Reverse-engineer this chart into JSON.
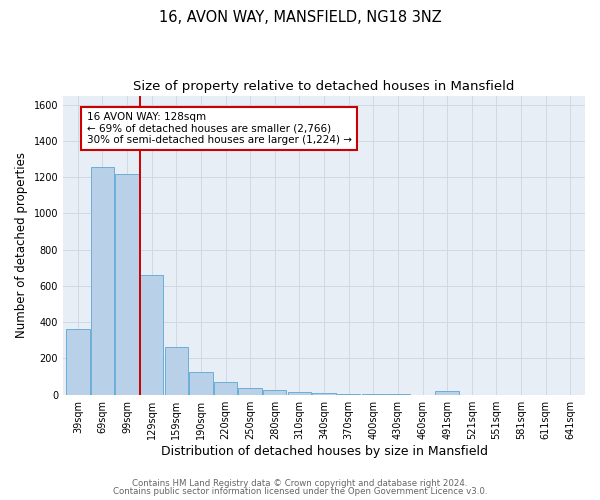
{
  "title": "16, AVON WAY, MANSFIELD, NG18 3NZ",
  "subtitle": "Size of property relative to detached houses in Mansfield",
  "xlabel": "Distribution of detached houses by size in Mansfield",
  "ylabel": "Number of detached properties",
  "footer_line1": "Contains HM Land Registry data © Crown copyright and database right 2024.",
  "footer_line2": "Contains public sector information licensed under the Open Government Licence v3.0.",
  "categories": [
    "39sqm",
    "69sqm",
    "99sqm",
    "129sqm",
    "159sqm",
    "190sqm",
    "220sqm",
    "250sqm",
    "280sqm",
    "310sqm",
    "340sqm",
    "370sqm",
    "400sqm",
    "430sqm",
    "460sqm",
    "491sqm",
    "521sqm",
    "551sqm",
    "581sqm",
    "611sqm",
    "641sqm"
  ],
  "values": [
    365,
    1255,
    1215,
    660,
    265,
    128,
    72,
    38,
    25,
    15,
    8,
    5,
    3,
    2,
    0,
    18,
    0,
    0,
    0,
    0,
    0
  ],
  "bar_color": "#b8d0e8",
  "bar_edge_color": "#6aaed6",
  "bar_edge_width": 0.7,
  "property_line_index": 3,
  "property_line_color": "#cc0000",
  "annotation_line1": "16 AVON WAY: 128sqm",
  "annotation_line2": "← 69% of detached houses are smaller (2,766)",
  "annotation_line3": "30% of semi-detached houses are larger (1,224) →",
  "annotation_box_color": "#ffffff",
  "annotation_box_edge_color": "#cc0000",
  "annotation_fontsize": 7.5,
  "ylim": [
    0,
    1650
  ],
  "yticks": [
    0,
    200,
    400,
    600,
    800,
    1000,
    1200,
    1400,
    1600
  ],
  "grid_color": "#d0d8e4",
  "background_color": "#e8eef6",
  "fig_background_color": "#ffffff",
  "title_fontsize": 10.5,
  "subtitle_fontsize": 9.5,
  "xlabel_fontsize": 9,
  "ylabel_fontsize": 8.5,
  "tick_fontsize": 7,
  "footer_fontsize": 6.2,
  "footer_color": "#666666"
}
